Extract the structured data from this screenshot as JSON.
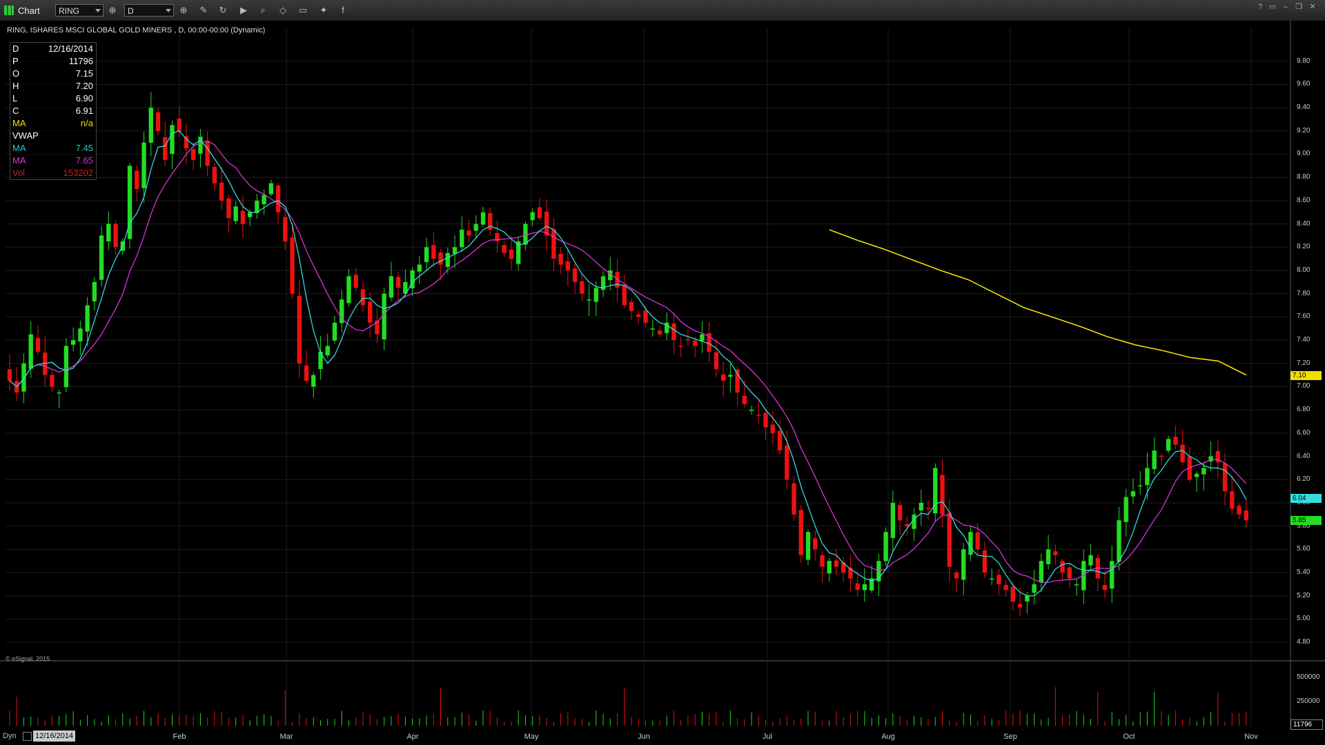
{
  "toolbar": {
    "app_title": "Chart",
    "symbol_input": "RING",
    "interval_input": "D",
    "icons": [
      "crosshair-icon",
      "pencil-icon",
      "refresh-icon",
      "play-icon",
      "zoom-icon",
      "eraser-icon",
      "comment-icon",
      "twitter-icon",
      "facebook-icon"
    ]
  },
  "window_controls": [
    "?",
    "▭",
    "–",
    "❐",
    "✕"
  ],
  "chart_title": "RING, ISHARES MSCI GLOBAL GOLD MINERS , D, 00:00-00:00 (Dynamic)",
  "data_window": {
    "rows": [
      {
        "key": "D",
        "value": "12/16/2014",
        "color": "#ffffff"
      },
      {
        "key": "P",
        "value": "11796",
        "color": "#ffffff"
      },
      {
        "key": "O",
        "value": "7.15",
        "color": "#ffffff"
      },
      {
        "key": "H",
        "value": "7.20",
        "color": "#ffffff"
      },
      {
        "key": "L",
        "value": "6.90",
        "color": "#ffffff"
      },
      {
        "key": "C",
        "value": "6.91",
        "color": "#ffffff"
      },
      {
        "key": "MA",
        "value": "n/a",
        "color": "#f0e000"
      },
      {
        "key": "VWAP",
        "value": "",
        "color": "#ffffff"
      },
      {
        "key": "MA",
        "value": "7.45",
        "color": "#22cccc"
      },
      {
        "key": "MA",
        "value": "7.65",
        "color": "#dd33dd"
      },
      {
        "key": "Vol",
        "value": "153202",
        "color": "#cc2222"
      }
    ]
  },
  "copyright": "© eSignal, 2015",
  "bottom_bar": {
    "dyn_label": "Dyn",
    "date": "12/16/2014"
  },
  "price_tags": {
    "ma_yellow": {
      "text": "7.10",
      "value": 7.1,
      "color": "#f0e000"
    },
    "ma_cyan": {
      "text": "6.04",
      "value": 6.04,
      "color": "#33dddd"
    },
    "close": {
      "text": "5.85",
      "value": 5.85,
      "color": "#22dd22"
    },
    "volume": {
      "text": "11796",
      "color": "#ffffff"
    }
  },
  "chart_data": {
    "type": "candlestick",
    "x_labels": [
      "Feb",
      "Mar",
      "Apr",
      "May",
      "Jun",
      "Jul",
      "Aug",
      "Sep",
      "Oct",
      "Nov"
    ],
    "price_axis": {
      "ticks": [
        4.8,
        5.0,
        5.2,
        5.4,
        5.6,
        5.8,
        6.0,
        6.2,
        6.4,
        6.6,
        6.8,
        7.0,
        7.2,
        7.4,
        7.6,
        7.8,
        8.0,
        8.2,
        8.4,
        8.6,
        8.8,
        9.0,
        9.2,
        9.4,
        9.6,
        9.8
      ],
      "range": [
        4.7,
        10.0
      ]
    },
    "volume_axis": {
      "ticks": [
        0,
        250000,
        500000
      ],
      "tick_labels": [
        "",
        "250000",
        "500000"
      ],
      "range": [
        0,
        600000
      ]
    },
    "up_color": "#22dd22",
    "down_color": "#ee1111",
    "closes": [
      7.05,
      6.95,
      7.2,
      7.45,
      7.3,
      7.1,
      7.0,
      6.95,
      7.35,
      7.4,
      7.5,
      7.7,
      7.9,
      8.3,
      8.4,
      8.2,
      8.25,
      8.9,
      8.7,
      9.1,
      9.4,
      9.2,
      8.95,
      9.25,
      9.2,
      9.05,
      8.95,
      9.15,
      8.9,
      8.75,
      8.6,
      8.45,
      8.55,
      8.4,
      8.5,
      8.6,
      8.65,
      8.75,
      8.5,
      8.25,
      7.8,
      7.2,
      7.05,
      7.1,
      7.3,
      7.35,
      7.55,
      7.75,
      7.95,
      7.85,
      7.7,
      7.55,
      7.45,
      7.8,
      7.95,
      7.85,
      7.9,
      8.0,
      8.05,
      8.2,
      8.1,
      8.05,
      8.15,
      8.2,
      8.35,
      8.3,
      8.4,
      8.5,
      8.35,
      8.25,
      8.15,
      8.1,
      8.25,
      8.4,
      8.5,
      8.45,
      8.3,
      8.1,
      8.05,
      8.0,
      7.9,
      7.8,
      7.75,
      7.85,
      7.95,
      8.0,
      7.85,
      7.7,
      7.65,
      7.6,
      7.55,
      7.5,
      7.45,
      7.55,
      7.4,
      7.35,
      7.4,
      7.35,
      7.45,
      7.3,
      7.15,
      7.05,
      7.1,
      6.95,
      6.85,
      6.8,
      6.75,
      6.65,
      6.6,
      6.45,
      6.2,
      5.9,
      5.55,
      5.75,
      5.6,
      5.45,
      5.5,
      5.45,
      5.4,
      5.35,
      5.25,
      5.3,
      5.35,
      5.5,
      5.75,
      6.0,
      5.85,
      5.8,
      5.9,
      6.0,
      5.95,
      6.3,
      5.9,
      5.45,
      5.35,
      5.6,
      5.75,
      5.6,
      5.4,
      5.35,
      5.3,
      5.25,
      5.15,
      5.1,
      5.2,
      5.3,
      5.5,
      5.6,
      5.55,
      5.4,
      5.35,
      5.3,
      5.5,
      5.55,
      5.35,
      5.25,
      5.5,
      5.85,
      6.05,
      6.1,
      6.15,
      6.3,
      6.45,
      6.4,
      6.55,
      6.5,
      6.35,
      6.2,
      6.25,
      6.3,
      6.4,
      6.35,
      6.1,
      5.95,
      5.9,
      5.85
    ],
    "candles_note": "approximate daily series RING Jan–Nov 2014",
    "ma_yellow": {
      "x_start_index": 116,
      "values": [
        8.35,
        8.26,
        8.18,
        8.09,
        8.0,
        7.92,
        7.8,
        7.68,
        7.6,
        7.52,
        7.43,
        7.36,
        7.31,
        7.25,
        7.22,
        7.1
      ]
    }
  }
}
